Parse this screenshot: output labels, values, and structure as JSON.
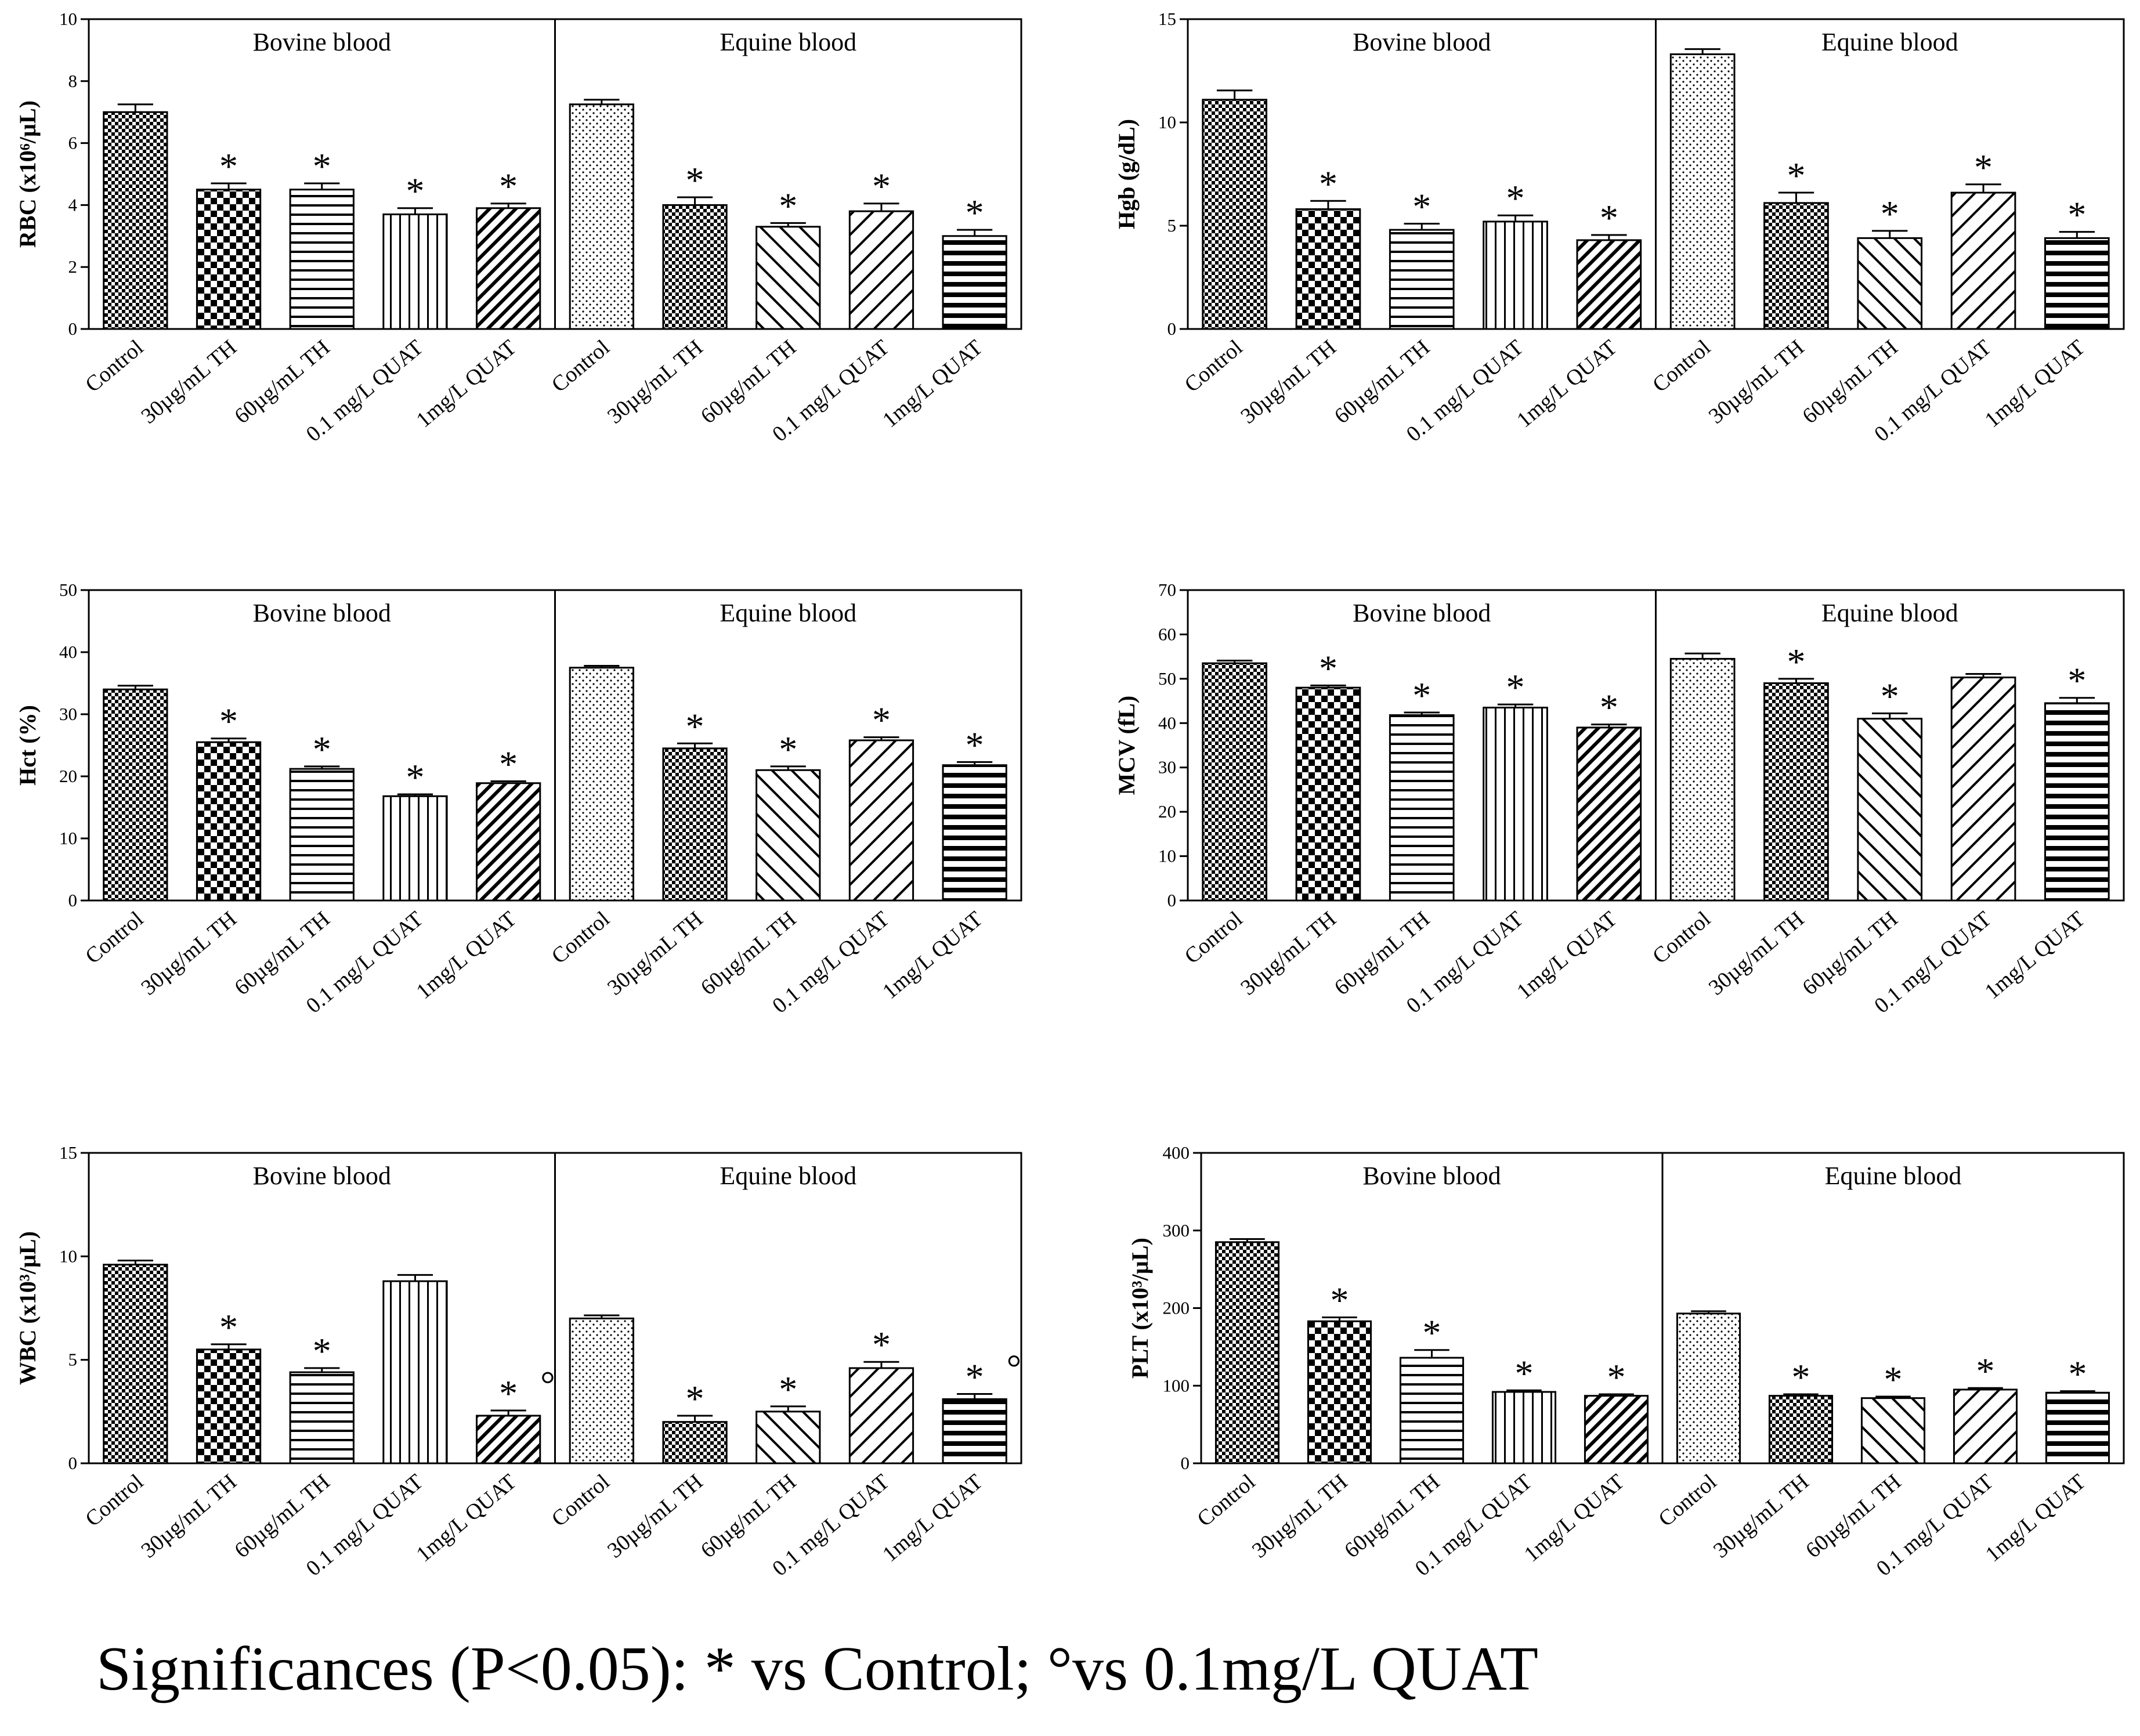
{
  "footnote": "Significances (P<0.05): * vs Control; °vs 0.1mg/L QUAT",
  "chart_data": [
    {
      "type": "bar",
      "id": "rbc",
      "ylabel": "RBC (x10⁶/µL)",
      "ylim": [
        0,
        10
      ],
      "yticks": [
        "0",
        "2",
        "4",
        "6",
        "8",
        "10"
      ],
      "groups": [
        {
          "title": "Bovine blood",
          "categories": [
            "Control",
            "30µg/mL TH",
            "60µg/mL TH",
            "0.1 mg/L QUAT",
            "1mg/L QUAT"
          ],
          "values": [
            7.0,
            4.5,
            4.5,
            3.7,
            3.9
          ],
          "errors": [
            0.25,
            0.2,
            0.2,
            0.2,
            0.15
          ],
          "annotations": [
            "",
            "*",
            "*",
            "*",
            "*"
          ]
        },
        {
          "title": "Equine blood",
          "categories": [
            "Control",
            "30µg/mL TH",
            "60µg/mL TH",
            "0.1 mg/L QUAT",
            "1mg/L QUAT"
          ],
          "values": [
            7.25,
            4.0,
            3.3,
            3.8,
            3.0
          ],
          "errors": [
            0.15,
            0.25,
            0.12,
            0.25,
            0.2
          ],
          "annotations": [
            "",
            "*",
            "*",
            "*",
            "*"
          ]
        }
      ]
    },
    {
      "type": "bar",
      "id": "hgb",
      "ylabel": "Hgb (g/dL)",
      "ylim": [
        0,
        15
      ],
      "yticks": [
        "0",
        "5",
        "10",
        "15"
      ],
      "groups": [
        {
          "title": "Bovine blood",
          "categories": [
            "Control",
            "30µg/mL TH",
            "60µg/mL TH",
            "0.1 mg/L QUAT",
            "1mg/L QUAT"
          ],
          "values": [
            11.1,
            5.8,
            4.8,
            5.2,
            4.3
          ],
          "errors": [
            0.45,
            0.4,
            0.3,
            0.3,
            0.25
          ],
          "annotations": [
            "",
            "*",
            "*",
            "*",
            "*"
          ]
        },
        {
          "title": "Equine blood",
          "categories": [
            "Control",
            "30µg/mL TH",
            "60µg/mL TH",
            "0.1 mg/L QUAT",
            "1mg/L QUAT"
          ],
          "values": [
            13.3,
            6.1,
            4.4,
            6.6,
            4.4
          ],
          "errors": [
            0.25,
            0.5,
            0.35,
            0.4,
            0.3
          ],
          "annotations": [
            "",
            "*",
            "*",
            "*",
            "*"
          ]
        }
      ]
    },
    {
      "type": "bar",
      "id": "hct",
      "ylabel": "Hct (%)",
      "ylim": [
        0,
        50
      ],
      "yticks": [
        "0",
        "10",
        "20",
        "30",
        "40",
        "50"
      ],
      "groups": [
        {
          "title": "Bovine blood",
          "categories": [
            "Control",
            "30µg/mL TH",
            "60µg/mL TH",
            "0.1 mg/L QUAT",
            "1mg/L QUAT"
          ],
          "values": [
            34.0,
            25.5,
            21.2,
            16.8,
            18.9
          ],
          "errors": [
            0.6,
            0.6,
            0.4,
            0.3,
            0.3
          ],
          "annotations": [
            "",
            "*",
            "*",
            "*",
            "*"
          ]
        },
        {
          "title": "Equine blood",
          "categories": [
            "Control",
            "30µg/mL TH",
            "60µg/mL TH",
            "0.1 mg/L QUAT",
            "1mg/L QUAT"
          ],
          "values": [
            37.5,
            24.5,
            21.0,
            25.8,
            21.8
          ],
          "errors": [
            0.3,
            0.8,
            0.6,
            0.5,
            0.5
          ],
          "annotations": [
            "",
            "*",
            "*",
            "*",
            "*"
          ]
        }
      ]
    },
    {
      "type": "bar",
      "id": "mcv",
      "ylabel": "MCV (fL)",
      "ylim": [
        0,
        70
      ],
      "yticks": [
        "0",
        "10",
        "20",
        "30",
        "40",
        "50",
        "60",
        "70"
      ],
      "groups": [
        {
          "title": "Bovine blood",
          "categories": [
            "Control",
            "30µg/mL TH",
            "60µg/mL TH",
            "0.1 mg/L QUAT",
            "1mg/L QUAT"
          ],
          "values": [
            53.5,
            48.0,
            41.8,
            43.5,
            39.0
          ],
          "errors": [
            0.6,
            0.5,
            0.6,
            0.7,
            0.7
          ],
          "annotations": [
            "",
            "*",
            "*",
            "*",
            "*"
          ]
        },
        {
          "title": "Equine blood",
          "categories": [
            "Control",
            "30µg/mL TH",
            "60µg/mL TH",
            "0.1 mg/L QUAT",
            "1mg/L QUAT"
          ],
          "values": [
            54.5,
            49.0,
            41.0,
            50.3,
            44.5
          ],
          "errors": [
            1.2,
            1.0,
            1.2,
            0.8,
            1.2
          ],
          "annotations": [
            "",
            "*",
            "*",
            "",
            "*"
          ]
        }
      ]
    },
    {
      "type": "bar",
      "id": "wbc",
      "ylabel": "WBC (x10³/µL)",
      "ylim": [
        0,
        15
      ],
      "yticks": [
        "0",
        "5",
        "10",
        "15"
      ],
      "groups": [
        {
          "title": "Bovine blood",
          "categories": [
            "Control",
            "30µg/mL TH",
            "60µg/mL TH",
            "0.1 mg/L QUAT",
            "1mg/L QUAT"
          ],
          "values": [
            9.6,
            5.5,
            4.4,
            8.8,
            2.3
          ],
          "errors": [
            0.2,
            0.25,
            0.2,
            0.3,
            0.25
          ],
          "annotations": [
            "",
            "*",
            "*",
            "",
            "* °"
          ]
        },
        {
          "title": "Equine blood",
          "categories": [
            "Control",
            "30µg/mL TH",
            "60µg/mL TH",
            "0.1 mg/L QUAT",
            "1mg/L QUAT"
          ],
          "values": [
            7.0,
            2.0,
            2.5,
            4.6,
            3.1
          ],
          "errors": [
            0.15,
            0.3,
            0.25,
            0.3,
            0.25
          ],
          "annotations": [
            "",
            "*",
            "*",
            "*",
            "* °"
          ]
        }
      ]
    },
    {
      "type": "bar",
      "id": "plt",
      "ylabel": "PLT (x10³/µL)",
      "ylim": [
        0,
        400
      ],
      "yticks": [
        "0",
        "100",
        "200",
        "300",
        "400"
      ],
      "groups": [
        {
          "title": "Bovine blood",
          "categories": [
            "Control",
            "30µg/mL TH",
            "60µg/mL TH",
            "0.1 mg/L QUAT",
            "1mg/L QUAT"
          ],
          "values": [
            285,
            183,
            136,
            92,
            87
          ],
          "errors": [
            4,
            5,
            10,
            2,
            2
          ],
          "annotations": [
            "",
            "*",
            "*",
            "*",
            "*"
          ]
        },
        {
          "title": "Equine blood",
          "categories": [
            "Control",
            "30µg/mL TH",
            "60µg/mL TH",
            "0.1 mg/L QUAT",
            "1mg/L QUAT"
          ],
          "values": [
            193,
            87,
            84,
            95,
            91
          ],
          "errors": [
            3,
            2,
            2,
            2,
            2
          ],
          "annotations": [
            "",
            "*",
            "*",
            "*",
            "*"
          ]
        }
      ]
    }
  ]
}
